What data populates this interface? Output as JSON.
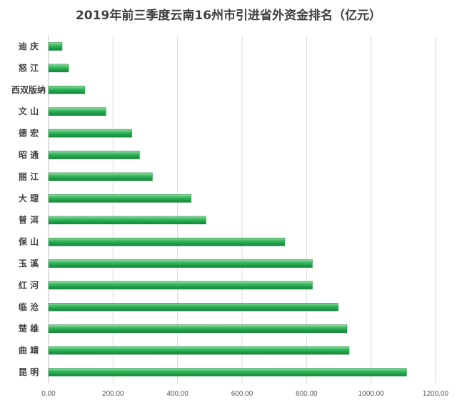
{
  "chart_data": {
    "type": "bar",
    "orientation": "horizontal",
    "title": "2019年前三季度云南16州市引进省外资金排名（亿元）",
    "categories": [
      "迪 庆",
      "怒 江",
      "西双版纳",
      "文 山",
      "德 宏",
      "昭 通",
      "丽 江",
      "大 理",
      "普 洱",
      "保 山",
      "玉 溪",
      "红 河",
      "临 沧",
      "楚 雄",
      "曲 靖",
      "昆 明"
    ],
    "values": [
      42,
      62,
      112,
      178,
      258,
      282,
      322,
      442,
      488,
      732,
      818,
      818,
      898,
      925,
      932,
      1110
    ],
    "xlim": [
      0,
      1200
    ],
    "xticks": [
      "0.00",
      "200.00",
      "400.00",
      "600.00",
      "800.00",
      "1000.00",
      "1200.00"
    ],
    "grid": true,
    "bar_color": "#22a34b"
  }
}
